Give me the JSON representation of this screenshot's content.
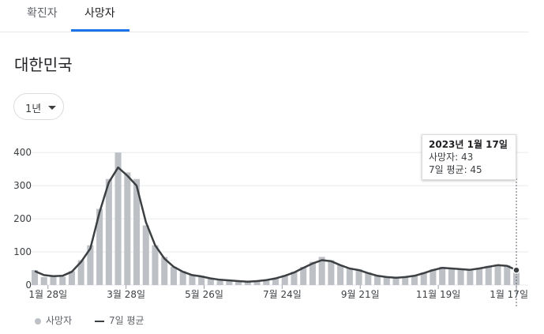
{
  "tabs": [
    {
      "label": "확진자"
    },
    {
      "label": "사망자"
    }
  ],
  "region_title": "대한민국",
  "period_select": {
    "value": "1년"
  },
  "tooltip": {
    "date": "2023년 1월 17일",
    "deaths_line": "사망자: 43",
    "avg_line": "7일 평균: 45"
  },
  "legend": {
    "bars": "사망자",
    "line": "7일 평균"
  },
  "colors": {
    "bars": "#bdc1c6",
    "line": "#3c4043",
    "grid": "#e8eaed",
    "accent": "#1a73e8"
  },
  "chart_data": {
    "type": "bar",
    "x_start": "2022-01-18",
    "x_end": "2023-01-17",
    "ylim": [
      0,
      460
    ],
    "yticks": [
      0,
      100,
      200,
      300,
      400
    ],
    "xtick_labels": [
      "1월 28일",
      "3월 28일",
      "5월 26일",
      "7월 24일",
      "9월 21일",
      "11월 19일",
      "1월 17일"
    ],
    "xtick_dates": [
      "2022-01-28",
      "2022-03-28",
      "2022-05-26",
      "2022-07-24",
      "2022-09-21",
      "2022-11-19",
      "2023-01-17"
    ],
    "grid": true,
    "legend_position": "bottom-left",
    "series": [
      {
        "name": "사망자",
        "type": "bar",
        "dates": [
          "2022-01-18",
          "2022-01-25",
          "2022-02-01",
          "2022-02-08",
          "2022-02-15",
          "2022-02-22",
          "2022-03-01",
          "2022-03-08",
          "2022-03-15",
          "2022-03-22",
          "2022-03-29",
          "2022-04-05",
          "2022-04-12",
          "2022-04-19",
          "2022-04-26",
          "2022-05-03",
          "2022-05-10",
          "2022-05-17",
          "2022-05-24",
          "2022-05-31",
          "2022-06-07",
          "2022-06-14",
          "2022-06-21",
          "2022-06-28",
          "2022-07-05",
          "2022-07-12",
          "2022-07-19",
          "2022-07-26",
          "2022-08-02",
          "2022-08-09",
          "2022-08-16",
          "2022-08-23",
          "2022-08-30",
          "2022-09-06",
          "2022-09-13",
          "2022-09-20",
          "2022-09-27",
          "2022-10-04",
          "2022-10-11",
          "2022-10-18",
          "2022-10-25",
          "2022-11-01",
          "2022-11-08",
          "2022-11-15",
          "2022-11-22",
          "2022-11-29",
          "2022-12-06",
          "2022-12-13",
          "2022-12-20",
          "2022-12-27",
          "2023-01-03",
          "2023-01-10",
          "2023-01-17"
        ],
        "values": [
          45,
          24,
          28,
          25,
          42,
          75,
          120,
          230,
          320,
          400,
          340,
          320,
          180,
          120,
          85,
          55,
          42,
          32,
          28,
          22,
          16,
          14,
          12,
          11,
          14,
          16,
          22,
          30,
          40,
          55,
          70,
          85,
          75,
          60,
          50,
          48,
          38,
          28,
          24,
          22,
          24,
          30,
          38,
          48,
          55,
          52,
          50,
          48,
          52,
          58,
          62,
          60,
          43
        ]
      },
      {
        "name": "7일 평균",
        "type": "line",
        "dates": [
          "2022-01-18",
          "2022-01-25",
          "2022-02-01",
          "2022-02-08",
          "2022-02-15",
          "2022-02-22",
          "2022-03-01",
          "2022-03-08",
          "2022-03-15",
          "2022-03-22",
          "2022-03-29",
          "2022-04-05",
          "2022-04-12",
          "2022-04-19",
          "2022-04-26",
          "2022-05-03",
          "2022-05-10",
          "2022-05-17",
          "2022-05-24",
          "2022-05-31",
          "2022-06-07",
          "2022-06-14",
          "2022-06-21",
          "2022-06-28",
          "2022-07-05",
          "2022-07-12",
          "2022-07-19",
          "2022-07-26",
          "2022-08-02",
          "2022-08-09",
          "2022-08-16",
          "2022-08-23",
          "2022-08-30",
          "2022-09-06",
          "2022-09-13",
          "2022-09-20",
          "2022-09-27",
          "2022-10-04",
          "2022-10-11",
          "2022-10-18",
          "2022-10-25",
          "2022-11-01",
          "2022-11-08",
          "2022-11-15",
          "2022-11-22",
          "2022-11-29",
          "2022-12-06",
          "2022-12-13",
          "2022-12-20",
          "2022-12-27",
          "2023-01-03",
          "2023-01-10",
          "2023-01-17"
        ],
        "values": [
          42,
          30,
          27,
          28,
          40,
          70,
          110,
          220,
          310,
          355,
          330,
          300,
          190,
          120,
          80,
          55,
          40,
          30,
          26,
          20,
          16,
          14,
          12,
          10,
          12,
          15,
          20,
          28,
          38,
          52,
          65,
          75,
          72,
          60,
          50,
          45,
          36,
          28,
          24,
          22,
          24,
          28,
          36,
          45,
          52,
          50,
          48,
          46,
          50,
          55,
          60,
          58,
          45
        ]
      }
    ]
  }
}
